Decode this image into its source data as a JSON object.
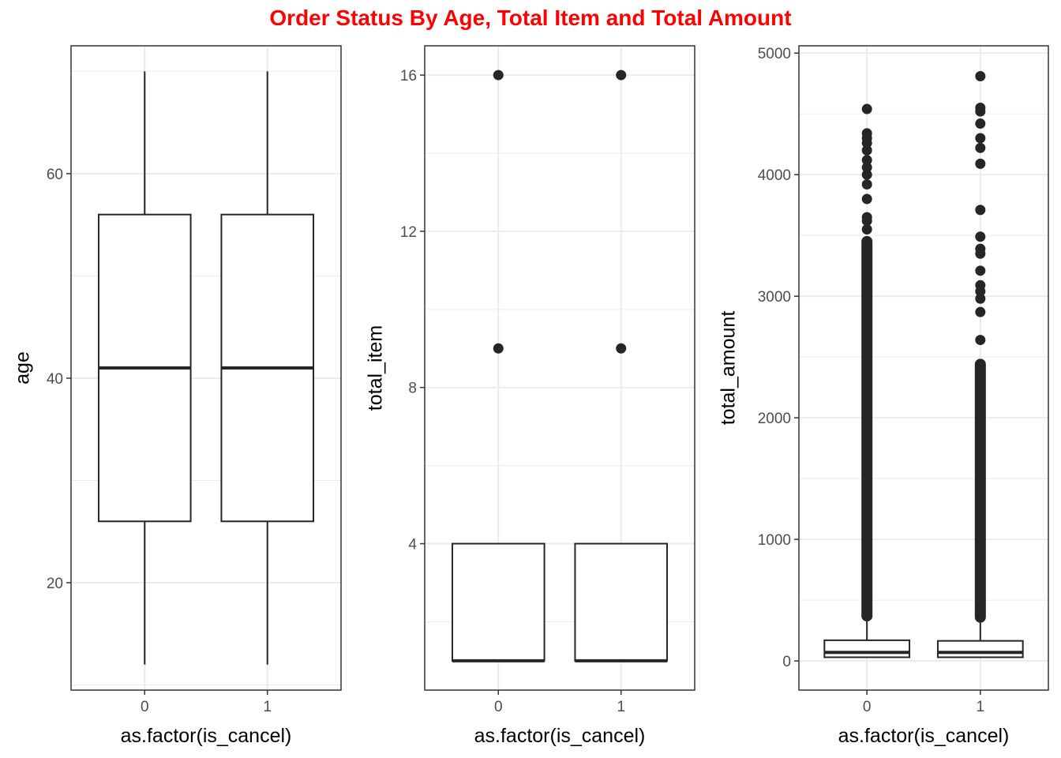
{
  "title": "Order Status By Age, Total Item and Total Amount",
  "colors": {
    "title": "#ff0000",
    "box_line": "#262626",
    "grid": "#ebebeb",
    "panel_border": "#333333",
    "tick_text": "#4d4d4d"
  },
  "chart_data": [
    {
      "type": "box",
      "xlabel": "as.factor(is_cancel)",
      "ylabel": "age",
      "categories": [
        "0",
        "1"
      ],
      "ylim": [
        9.5,
        72.5
      ],
      "yticks": [
        20,
        40,
        60
      ],
      "grid": true,
      "boxes": [
        {
          "category": "0",
          "whisker_low": 12,
          "q1": 26,
          "median": 41,
          "q3": 56,
          "whisker_high": 70,
          "outliers": []
        },
        {
          "category": "1",
          "whisker_low": 12,
          "q1": 26,
          "median": 41,
          "q3": 56,
          "whisker_high": 70,
          "outliers": []
        }
      ]
    },
    {
      "type": "box",
      "xlabel": "as.factor(is_cancel)",
      "ylabel": "total_item",
      "categories": [
        "0",
        "1"
      ],
      "ylim": [
        0.25,
        16.75
      ],
      "yticks": [
        4,
        8,
        12,
        16
      ],
      "grid": true,
      "boxes": [
        {
          "category": "0",
          "whisker_low": 1,
          "q1": 1,
          "median": 1,
          "q3": 4,
          "whisker_high": 4,
          "outliers": [
            9,
            16
          ]
        },
        {
          "category": "1",
          "whisker_low": 1,
          "q1": 1,
          "median": 1,
          "q3": 4,
          "whisker_high": 4,
          "outliers": [
            9,
            16
          ]
        }
      ]
    },
    {
      "type": "box",
      "xlabel": "as.factor(is_cancel)",
      "ylabel": "total_amount",
      "categories": [
        "0",
        "1"
      ],
      "ylim": [
        -240,
        5060
      ],
      "yticks": [
        0,
        1000,
        2000,
        3000,
        4000,
        5000
      ],
      "grid": true,
      "boxes": [
        {
          "category": "0",
          "whisker_low": 30,
          "q1": 30,
          "median": 70,
          "q3": 170,
          "whisker_high": 370,
          "outlier_band": [
            370,
            3450
          ],
          "outliers": [
            3550,
            3620,
            3650,
            3800,
            3920,
            4000,
            4060,
            4120,
            4200,
            4260,
            4300,
            4340,
            4540
          ]
        },
        {
          "category": "1",
          "whisker_low": 30,
          "q1": 30,
          "median": 70,
          "q3": 165,
          "whisker_high": 360,
          "outlier_band": [
            360,
            2440
          ],
          "outliers": [
            2640,
            2870,
            2980,
            3040,
            3090,
            3210,
            3350,
            3390,
            3490,
            3710,
            4090,
            4220,
            4300,
            4420,
            4520,
            4550,
            4810
          ]
        }
      ]
    }
  ]
}
